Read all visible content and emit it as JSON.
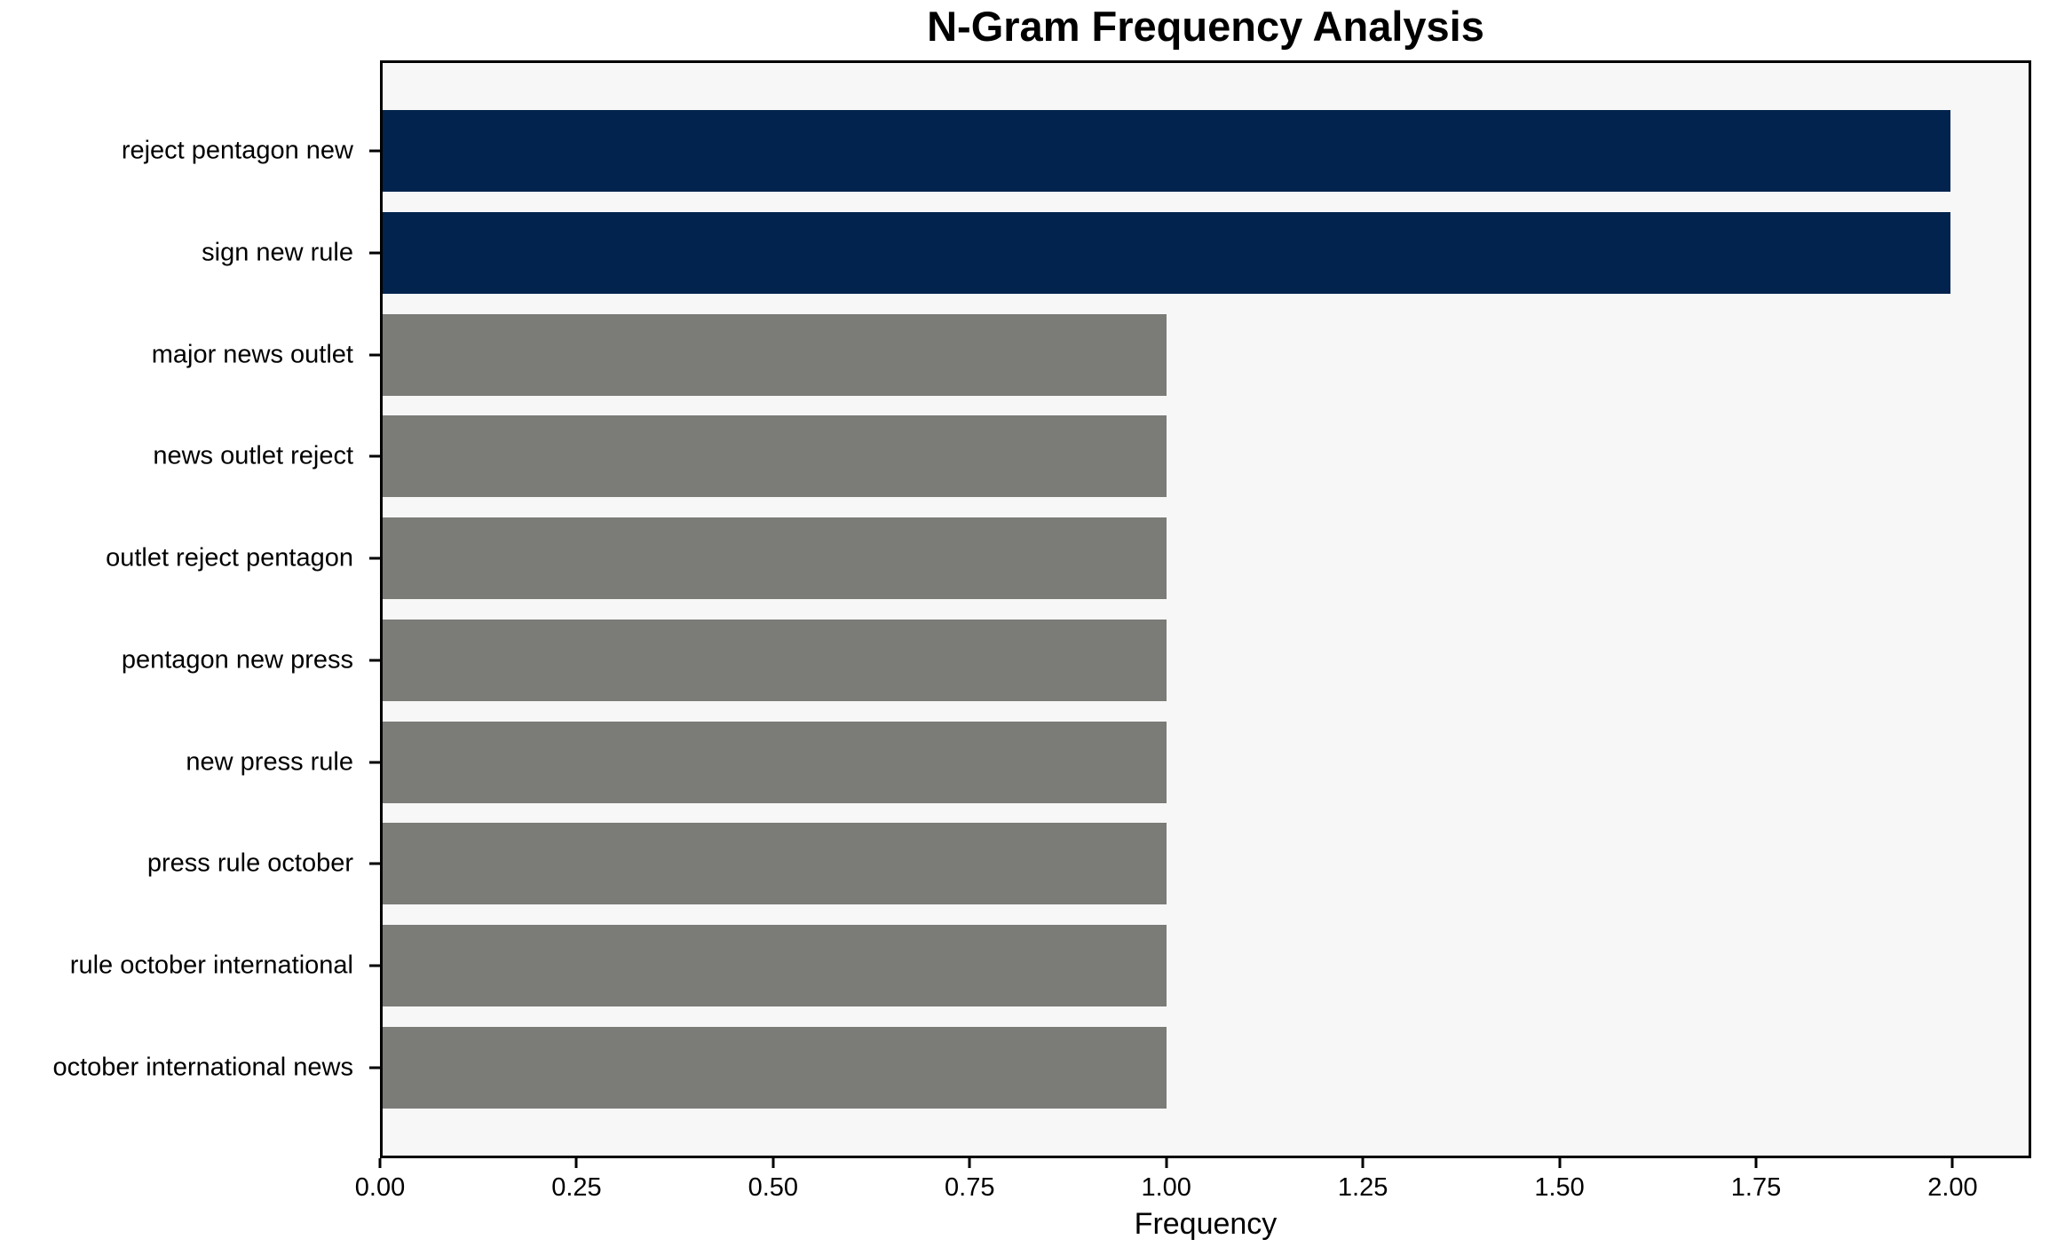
{
  "chart_data": {
    "type": "bar",
    "orientation": "horizontal",
    "title": "N-Gram Frequency Analysis",
    "xlabel": "Frequency",
    "ylabel": "",
    "categories": [
      "reject pentagon new",
      "sign new rule",
      "major news outlet",
      "news outlet reject",
      "outlet reject pentagon",
      "pentagon new press",
      "new press rule",
      "press rule october",
      "rule october international",
      "october international news"
    ],
    "values": [
      2,
      2,
      1,
      1,
      1,
      1,
      1,
      1,
      1,
      1
    ],
    "bar_colors": [
      "#02234d",
      "#02234d",
      "#7b7b78",
      "#7b7b78",
      "#7b7b78",
      "#7b7b78",
      "#7b7b78",
      "#7b7b78",
      "#7b7b78",
      "#7b7b78"
    ],
    "xlim": [
      0,
      2.1
    ],
    "xticks": [
      0,
      0.25,
      0.5,
      0.75,
      1.0,
      1.25,
      1.5,
      1.75,
      2.0
    ],
    "xtick_labels": [
      "0.00",
      "0.25",
      "0.50",
      "0.75",
      "1.00",
      "1.25",
      "1.50",
      "1.75",
      "2.00"
    ],
    "grid": false,
    "legend_position": "none",
    "colors": {
      "highlight_bar": "#02234d",
      "default_bar": "#7b7b78",
      "plot_background": "#f7f7f7",
      "figure_background": "#ffffff",
      "spine": "#000000",
      "text": "#000000"
    }
  }
}
